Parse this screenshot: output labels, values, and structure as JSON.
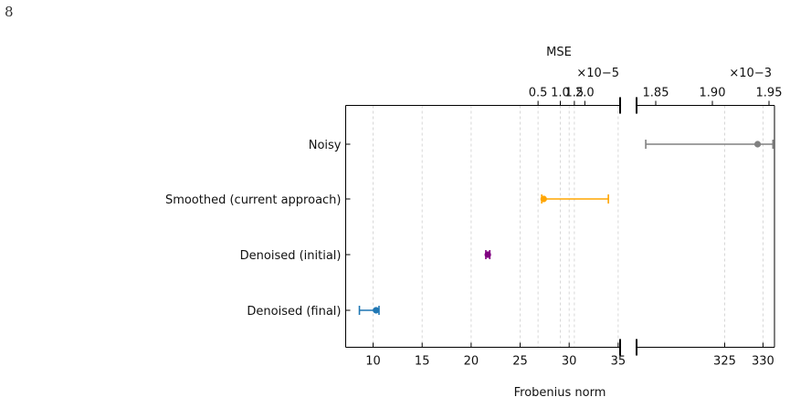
{
  "page": {
    "number": "8"
  },
  "chart_data": {
    "type": "scatter",
    "subtype": "dot-and-errorbar with broken axes",
    "xlabel": "Frobenius norm",
    "top_axis_label": "MSE",
    "categories": [
      "Noisy",
      "Smoothed (current approach)",
      "Denoised (initial)",
      "Denoised (final)"
    ],
    "frobenius": {
      "left_range": [
        7.2,
        35.2
      ],
      "right_range": [
        313.5,
        331.5
      ],
      "left_ticks": [
        10,
        15,
        20,
        25,
        30,
        35
      ],
      "right_ticks": [
        325,
        330
      ],
      "grid_x": [
        10,
        15,
        20,
        25,
        30,
        35
      ],
      "points": [
        {
          "name": "Noisy",
          "x": 329.3,
          "lo": 314.7,
          "hi": 331.3,
          "color": "#808080",
          "panel": "right"
        },
        {
          "name": "Smoothed (current approach)",
          "x": 27.4,
          "lo": 27.2,
          "hi": 34.0,
          "color": "#ffa500",
          "panel": "left"
        },
        {
          "name": "Denoised (initial)",
          "x": 21.7,
          "lo": 21.5,
          "hi": 21.9,
          "color": "#800080",
          "panel": "left"
        },
        {
          "name": "Denoised (final)",
          "x": 10.3,
          "lo": 8.6,
          "hi": 10.6,
          "color": "#1f77b4",
          "panel": "left"
        }
      ]
    },
    "mse": {
      "left_multiplier": "×10−5",
      "right_multiplier": "×10−3",
      "left_ticks": [
        {
          "value": 0.5,
          "label": "0.5"
        },
        {
          "value": 1.0,
          "label": "1.0"
        },
        {
          "value": 1.5,
          "label": "1.5"
        },
        {
          "value": 2.0,
          "label": "2.0"
        }
      ],
      "right_ticks": [
        {
          "value": 1.85,
          "label": "1.85"
        },
        {
          "value": 1.9,
          "label": "1.90"
        },
        {
          "value": 1.95,
          "label": "1.95"
        }
      ]
    },
    "grid": "vertical dashed (left panel)",
    "legend": "none"
  }
}
